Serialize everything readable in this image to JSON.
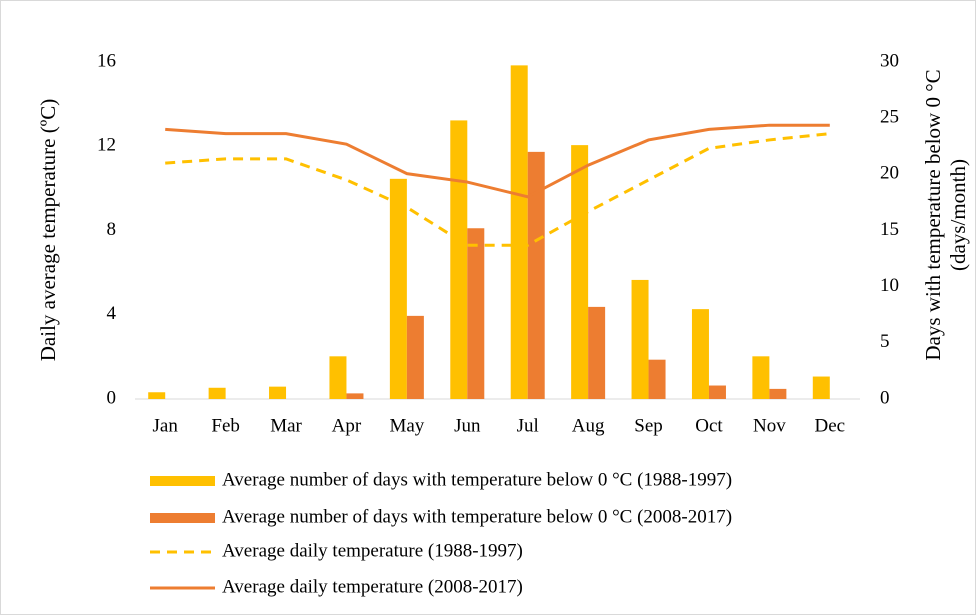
{
  "chart_data": {
    "type": "bar",
    "y_label": "Daily average temperature  (ºC)",
    "y2_label": [
      "Days with temperature below 0 °C",
      "(days/month)"
    ],
    "categories": [
      "Jan",
      "Feb",
      "Mar",
      "Apr",
      "May",
      "Jun",
      "Jul",
      "Aug",
      "Sep",
      "Oct",
      "Nov",
      "Dec"
    ],
    "series": [
      {
        "name": "Average number of days with temperature below 0 °C (1988-1997)",
        "type": "bar",
        "axis": "y2",
        "color": "#ffc000",
        "values": [
          0.6,
          1.0,
          1.1,
          3.8,
          19.6,
          24.8,
          29.7,
          22.6,
          10.6,
          8.0,
          3.8,
          2.0
        ]
      },
      {
        "name": "Average number of days with temperature below 0 °C (2008-2017)",
        "type": "bar",
        "axis": "y2",
        "color": "#ed7d31",
        "values": [
          0,
          0,
          0,
          0.5,
          7.4,
          15.2,
          22.0,
          8.2,
          3.5,
          1.2,
          0.9,
          0
        ]
      },
      {
        "name": "Average daily temperature (1988-1997)",
        "type": "line",
        "dashed": true,
        "axis": "y",
        "color": "#ffc000",
        "values": [
          11.2,
          11.4,
          11.4,
          10.4,
          9.1,
          7.3,
          7.3,
          8.9,
          10.4,
          11.9,
          12.3,
          12.6
        ]
      },
      {
        "name": "Average daily temperature (2008-2017)",
        "type": "line",
        "dashed": false,
        "axis": "y",
        "color": "#ed7d31",
        "values": [
          12.8,
          12.6,
          12.6,
          12.1,
          10.7,
          10.3,
          9.6,
          11.1,
          12.3,
          12.8,
          13.0,
          13.0
        ]
      }
    ],
    "ylim": [
      0,
      16
    ],
    "yticks": [
      0,
      4,
      8,
      12,
      16
    ],
    "y2lim": [
      0,
      30
    ],
    "y2ticks": [
      0,
      5,
      10,
      15,
      20,
      25,
      30
    ],
    "grid": false,
    "legend": "bottom"
  }
}
